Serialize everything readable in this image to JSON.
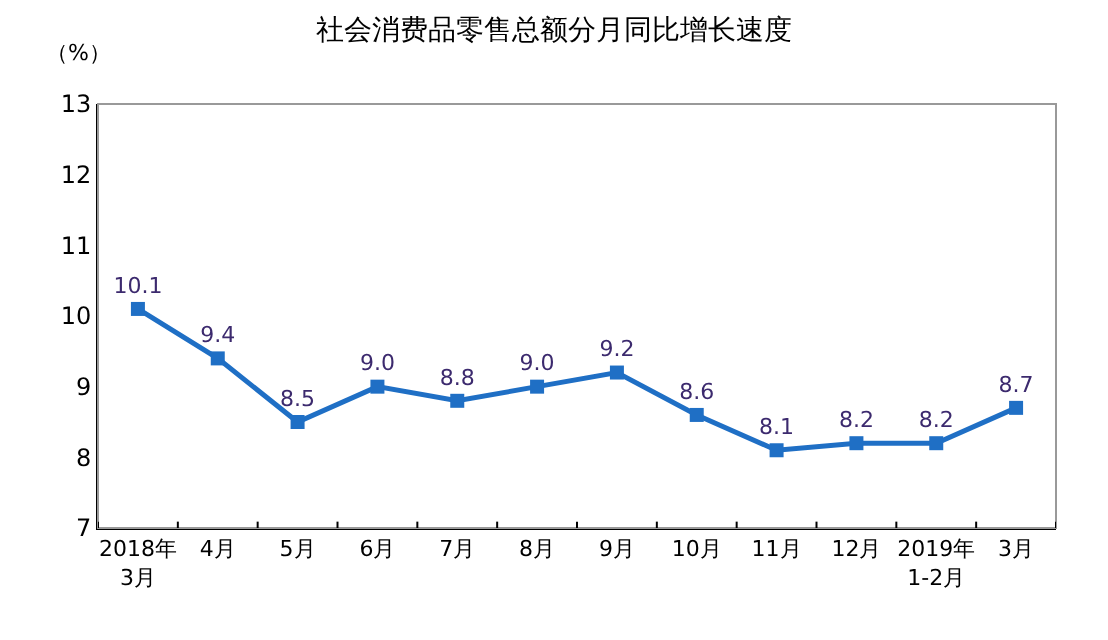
{
  "chart_data": {
    "type": "line",
    "title": "社会消费品零售总额分月同比增长速度",
    "ylabel": "（%）",
    "categories": [
      "2018年\n3月",
      "4月",
      "5月",
      "6月",
      "7月",
      "8月",
      "9月",
      "10月",
      "11月",
      "12月",
      "2019年\n1-2月",
      "3月"
    ],
    "series": [
      {
        "color": "#1f6fc5",
        "values": [
          10.1,
          9.4,
          8.5,
          9.0,
          8.8,
          9.0,
          9.2,
          8.6,
          8.1,
          8.2,
          8.2,
          8.7
        ],
        "value_labels": [
          "10.1",
          "9.4",
          "8.5",
          "9.0",
          "8.8",
          "9.0",
          "9.2",
          "8.6",
          "8.1",
          "8.2",
          "8.2",
          "8.7"
        ]
      }
    ],
    "ylim": [
      7,
      13
    ],
    "yticks": [
      7,
      8,
      9,
      10,
      11,
      12,
      13
    ],
    "grid": false,
    "marker": "square",
    "line_style": "solid"
  }
}
